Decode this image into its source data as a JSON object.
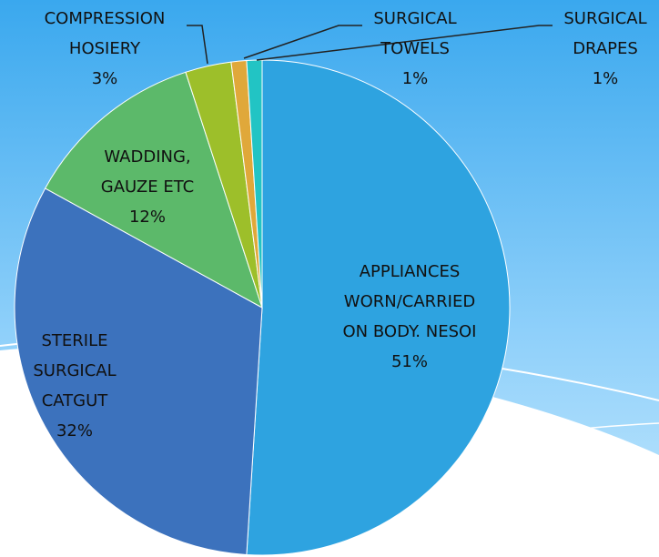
{
  "chart_data": {
    "type": "pie",
    "categories": [
      "APPLIANCES WORN/CARRIED ON BODY. NESOI",
      "STERILE SURGICAL CATGUT",
      "WADDING, GAUZE ETC",
      "COMPRESSION HOSIERY",
      "SURGICAL TOWELS",
      "SURGICAL DRAPES"
    ],
    "values": [
      51,
      32,
      12,
      3,
      1,
      1
    ],
    "value_labels": [
      "51%",
      "32%",
      "12%",
      "3%",
      "1%",
      "1%"
    ],
    "colors": [
      "#2ea3e0",
      "#3c72bd",
      "#5cb96a",
      "#9dbf2a",
      "#e0a83a",
      "#22c4c4"
    ]
  }
}
